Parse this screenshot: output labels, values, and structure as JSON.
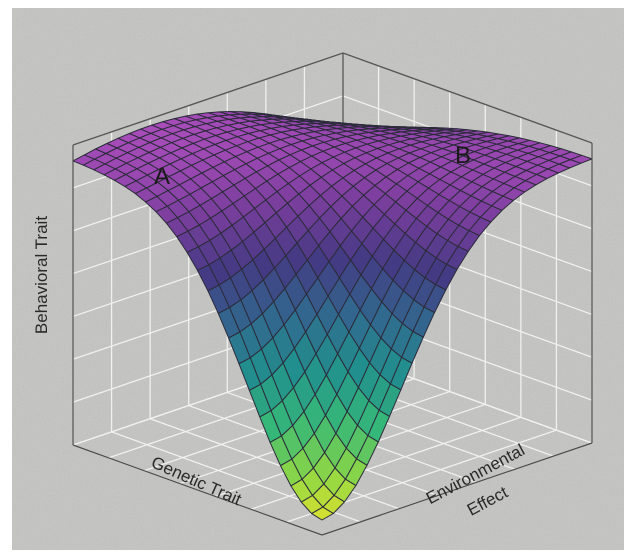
{
  "chart_data": {
    "type": "surface",
    "title": "",
    "xlabel": "Genetic Trait",
    "ylabel": "Environmental Effect",
    "zlabel": "Behavioral Trait",
    "xlabel_lines": [
      "Genetic Trait"
    ],
    "ylabel_lines": [
      "Environmental",
      "Effect"
    ],
    "grid": true,
    "colormap": [
      "#fde725",
      "#8fd744",
      "#35b779",
      "#21908d",
      "#31688e",
      "#443a83",
      "#7a3e9d",
      "#b04fbf"
    ],
    "annotations": [
      {
        "text": "A",
        "x": 0.15,
        "y": 0.9,
        "z": 0.9
      },
      {
        "text": "B",
        "x": 0.85,
        "y": 0.15,
        "z": 0.92
      }
    ],
    "surface_corners": [
      {
        "x": 0,
        "y": 0,
        "z": 0.05
      },
      {
        "x": 0,
        "y": 1,
        "z": 0.95
      },
      {
        "x": 1,
        "y": 0,
        "z": 0.95
      },
      {
        "x": 1,
        "y": 1,
        "z": 0.8
      }
    ]
  }
}
